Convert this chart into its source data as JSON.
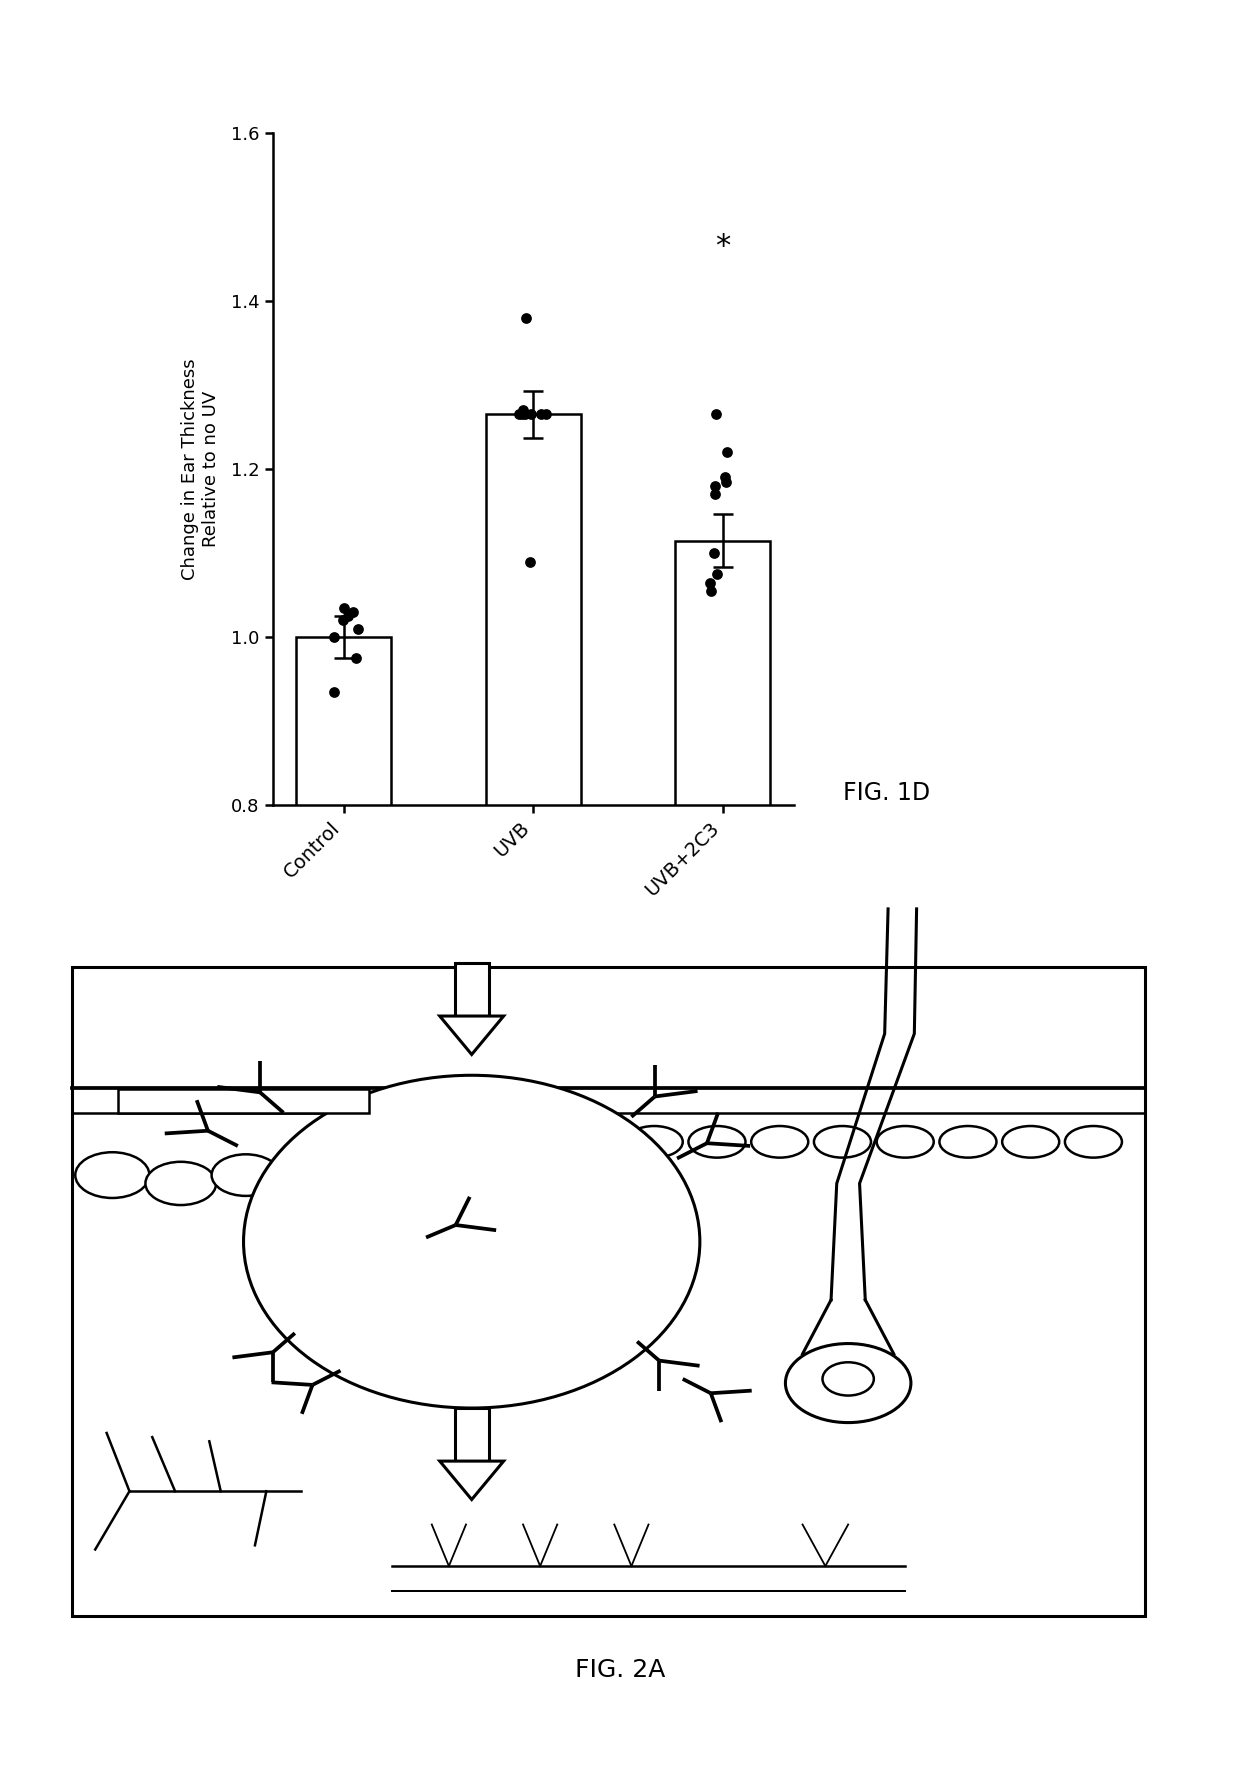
{
  "categories": [
    "Control",
    "UVB",
    "UVB+2C3"
  ],
  "bar_means": [
    1.0,
    1.265,
    1.115
  ],
  "bar_sems": [
    0.025,
    0.028,
    0.032
  ],
  "scatter_control": [
    0.935,
    0.975,
    1.0,
    1.01,
    1.02,
    1.025,
    1.03,
    1.035
  ],
  "scatter_uvb": [
    1.38,
    1.27,
    1.265,
    1.265,
    1.265,
    1.265,
    1.265,
    1.265,
    1.09
  ],
  "scatter_uvb2c3": [
    1.265,
    1.22,
    1.19,
    1.185,
    1.18,
    1.17,
    1.1,
    1.075,
    1.065,
    1.055
  ],
  "ylim": [
    0.8,
    1.6
  ],
  "yticks": [
    0.8,
    1.0,
    1.2,
    1.4,
    1.6
  ],
  "ylabel": "Change in Ear Thickness\nRelative to no UV",
  "fig1d_label": "FIG. 1D",
  "fig2a_label": "FIG. 2A",
  "star_annotation": "*",
  "background_color": "#ffffff",
  "bar_width": 0.5,
  "dot_color": "#000000",
  "dot_size": 60,
  "bar_color": "#ffffff",
  "bar_edgecolor": "#000000"
}
